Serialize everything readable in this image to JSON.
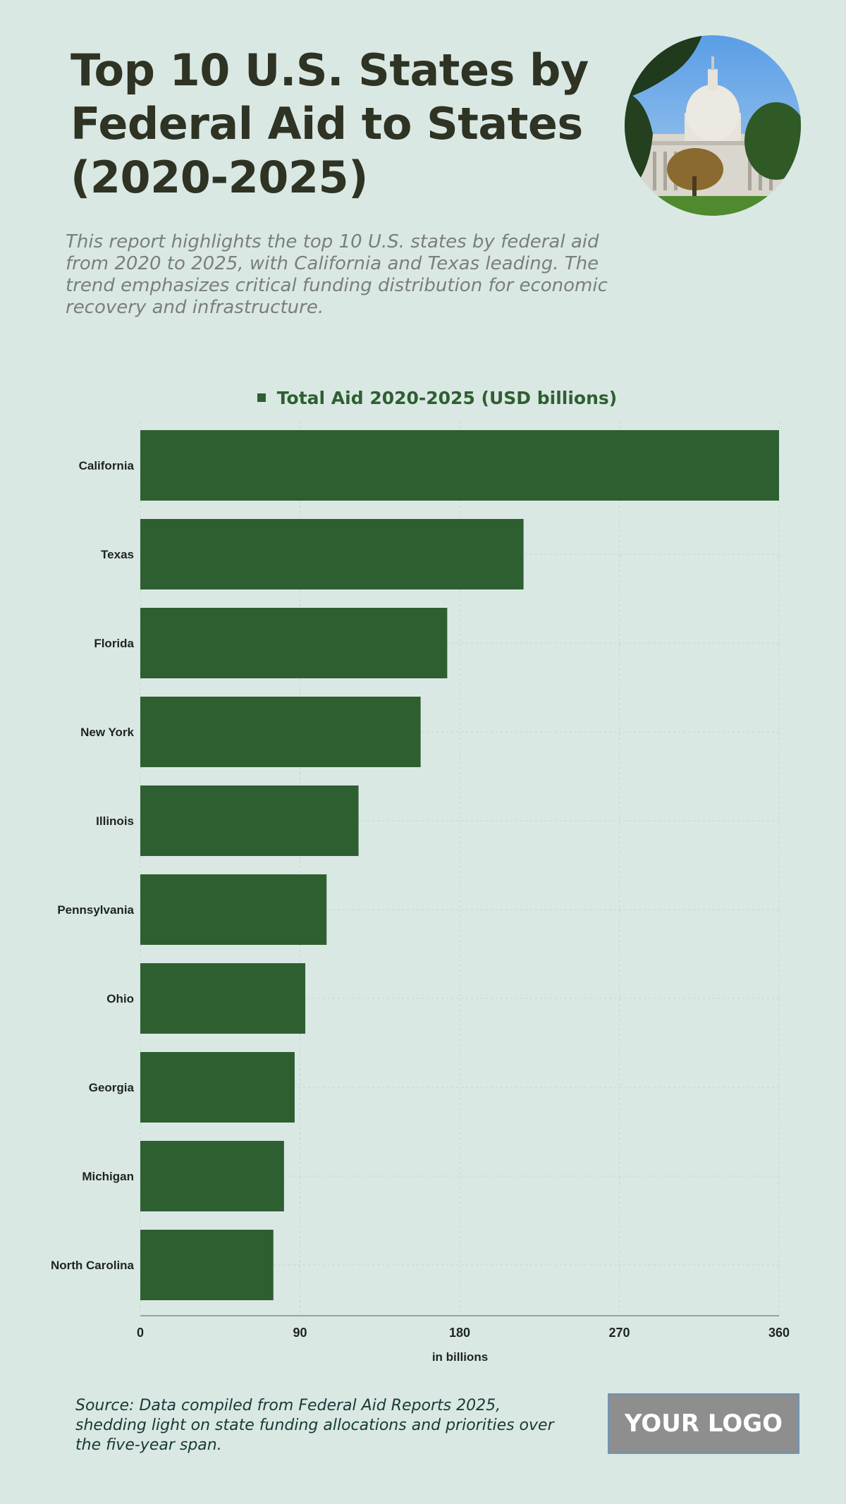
{
  "header": {
    "title": "Top 10 U.S. States by Federal Aid to States (2020-2025)",
    "subtitle": "This report highlights the top 10 U.S. states by federal aid from 2020 to 2025, with California and Texas leading. The trend emphasizes critical funding distribution for economic recovery and infrastructure.",
    "image_icon": "us-capitol-photo"
  },
  "chart_data": {
    "type": "bar",
    "orientation": "horizontal",
    "categories": [
      "California",
      "Texas",
      "Florida",
      "New York",
      "Illinois",
      "Pennsylvania",
      "Ohio",
      "Georgia",
      "Michigan",
      "North Carolina"
    ],
    "series": [
      {
        "name": "Total Aid 2020-2025 (USD billions)",
        "values": [
          360,
          216,
          173,
          158,
          123,
          105,
          93,
          87,
          81,
          75
        ]
      }
    ],
    "xlabel": "in billions",
    "ylabel": "",
    "xlim": [
      0,
      360
    ],
    "xticks": [
      0,
      90,
      180,
      270,
      360
    ],
    "grid": true,
    "legend_position": "top-center",
    "bar_color": "#2e5f31"
  },
  "footer": {
    "source": "Source: Data compiled from Federal Aid Reports 2025, shedding light on state funding allocations and priorities over the five-year span.",
    "logo_text": "YOUR LOGO"
  }
}
